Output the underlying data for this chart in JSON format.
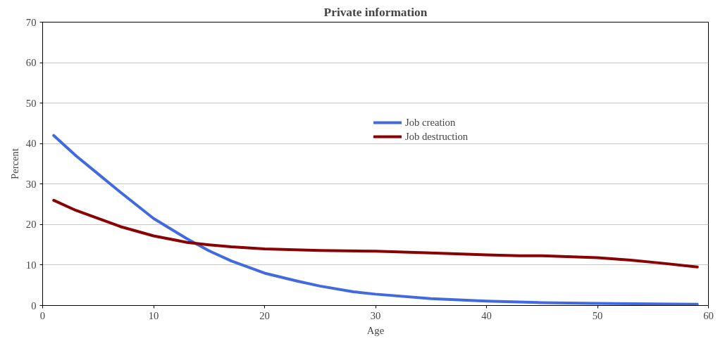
{
  "chart_data": {
    "type": "line",
    "title": "Private information",
    "xlabel": "Age",
    "ylabel": "Percent",
    "xlim": [
      0,
      60
    ],
    "xticks": [
      0,
      10,
      20,
      30,
      40,
      50,
      60
    ],
    "ylim": [
      0,
      70
    ],
    "yticks": [
      0,
      10,
      20,
      30,
      40,
      50,
      60,
      70
    ],
    "grid": "y",
    "legend": "top",
    "line_style": "solid",
    "series": [
      {
        "name": "Job creation",
        "color": "#4169e1",
        "x": [
          1,
          3,
          5,
          7,
          10,
          13,
          15,
          17,
          20,
          23,
          25,
          28,
          30,
          35,
          40,
          45,
          50,
          55,
          59
        ],
        "values": [
          42,
          37,
          32.5,
          28,
          21.5,
          16.5,
          13.5,
          11,
          8,
          6,
          4.8,
          3.4,
          2.8,
          1.7,
          1.1,
          0.7,
          0.5,
          0.4,
          0.3
        ]
      },
      {
        "name": "Job destruction",
        "color": "#8b0000",
        "x": [
          1,
          3,
          5,
          7,
          10,
          13,
          15,
          17,
          20,
          25,
          30,
          35,
          40,
          43,
          45,
          50,
          53,
          56,
          59
        ],
        "values": [
          26,
          23.5,
          21.5,
          19.5,
          17.2,
          15.6,
          15,
          14.5,
          14,
          13.6,
          13.4,
          13,
          12.5,
          12.3,
          12.3,
          11.8,
          11.2,
          10.4,
          9.5
        ]
      }
    ]
  }
}
